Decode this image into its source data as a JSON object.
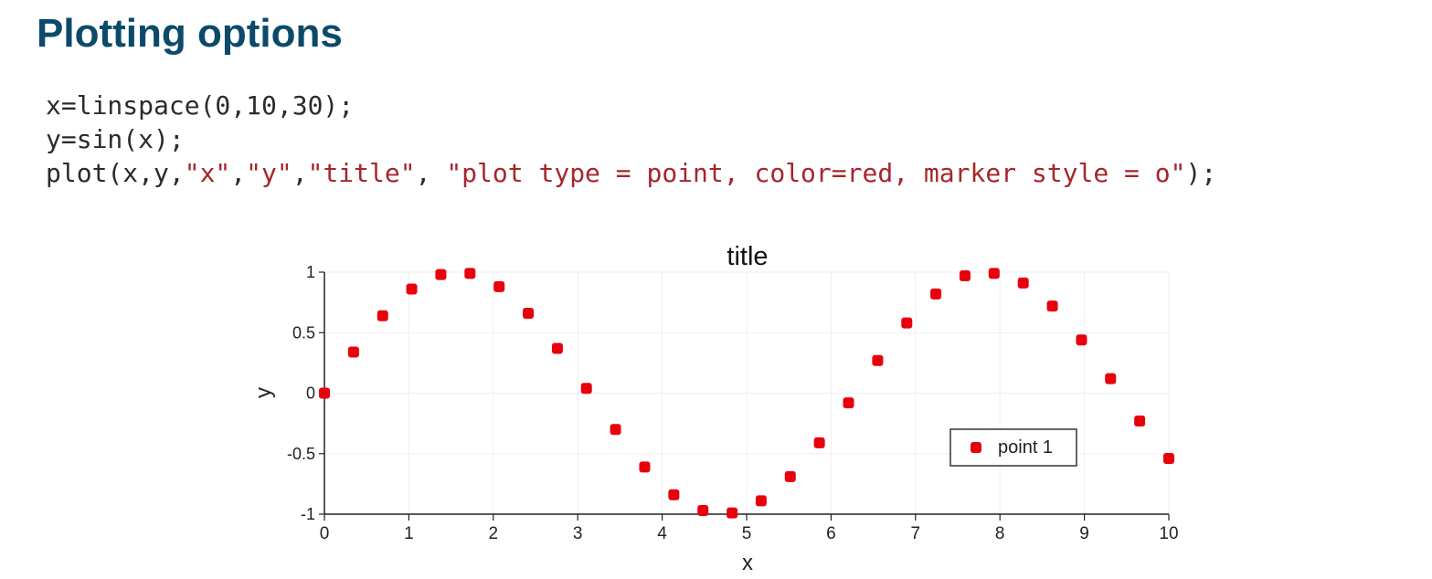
{
  "slide": {
    "title": "Plotting options"
  },
  "code": {
    "lines": [
      [
        {
          "text": "x=linspace(0,10,30);",
          "kind": "plain"
        }
      ],
      [
        {
          "text": "y=sin(x);",
          "kind": "plain"
        }
      ],
      [
        {
          "text": "plot(x,y,",
          "kind": "plain"
        },
        {
          "text": "\"x\"",
          "kind": "str"
        },
        {
          "text": ",",
          "kind": "plain"
        },
        {
          "text": "\"y\"",
          "kind": "str"
        },
        {
          "text": ",",
          "kind": "plain"
        },
        {
          "text": "\"title\"",
          "kind": "str"
        },
        {
          "text": ", ",
          "kind": "plain"
        },
        {
          "text": "\"plot type = point, color=red, marker style = o\"",
          "kind": "str"
        },
        {
          "text": ");",
          "kind": "plain"
        }
      ]
    ]
  },
  "chart_data": {
    "type": "scatter",
    "title": "title",
    "xlabel": "x",
    "ylabel": "y",
    "xlim": [
      0,
      10
    ],
    "ylim": [
      -1,
      1
    ],
    "xticks": [
      "0",
      "1",
      "2",
      "3",
      "4",
      "5",
      "6",
      "7",
      "8",
      "9",
      "10"
    ],
    "yticks": [
      "1",
      "0.5",
      "0",
      "-0.5",
      "-1"
    ],
    "grid": true,
    "legend_position": "lower-right",
    "series": [
      {
        "name": "point 1",
        "color": "#e8000d",
        "marker": "o",
        "x": [
          0,
          0.345,
          0.69,
          1.034,
          1.379,
          1.724,
          2.069,
          2.414,
          2.759,
          3.103,
          3.448,
          3.793,
          4.138,
          4.483,
          4.828,
          5.172,
          5.517,
          5.862,
          6.207,
          6.552,
          6.897,
          7.241,
          7.586,
          7.931,
          8.276,
          8.621,
          8.966,
          9.31,
          9.655,
          10
        ],
        "y": [
          0,
          0.34,
          0.64,
          0.86,
          0.98,
          0.99,
          0.88,
          0.66,
          0.37,
          0.04,
          -0.3,
          -0.61,
          -0.84,
          -0.97,
          -0.99,
          -0.89,
          -0.69,
          -0.41,
          -0.08,
          0.27,
          0.58,
          0.82,
          0.97,
          0.99,
          0.91,
          0.72,
          0.44,
          0.12,
          -0.23,
          -0.54
        ]
      }
    ]
  }
}
